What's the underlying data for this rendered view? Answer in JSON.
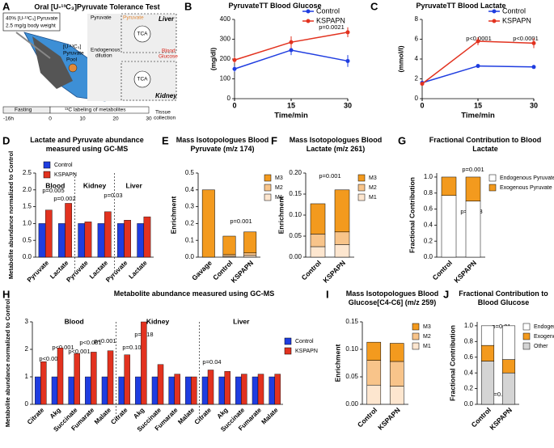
{
  "diagram": {
    "label": "A",
    "title": "Oral [U-¹³C₃]Pyruvate Tolerance Test",
    "dose_1": "40% [U-¹³C₃] Pyruvate",
    "dose_2": "2.5 mg/g body weight",
    "pool_1": "[U-¹³C₃]",
    "pool_2": "Pyruvate",
    "pool_3": "Pool",
    "liver_pyruvate_1": "Pyruvate",
    "liver_pyruvate_2": "Pyruvate",
    "liver": "Liver",
    "tca_1": "TCA",
    "dilution_1": "Endogenous",
    "dilution_2": "dilution",
    "glucose_1": "Blood",
    "glucose_2": "Glucose",
    "tca_2": "TCA",
    "kidney": "Kidney",
    "fasting": "Fasting",
    "labeling": "¹³C labeling of metabolites",
    "timeline": [
      "-16h",
      "0",
      "10",
      "20",
      "30"
    ],
    "collection_1": "Tissue",
    "collection_2": "collection"
  },
  "chart_data": [
    {
      "label": "B",
      "type": "line",
      "title": "PyruvateTT Blood Glucose",
      "x": [
        0,
        15,
        30
      ],
      "xlim": [
        0,
        30
      ],
      "xticks": [
        0,
        15,
        30
      ],
      "ylim": [
        0,
        400
      ],
      "yticks": [
        0,
        100,
        200,
        300,
        400
      ],
      "xlabel": "Time/min",
      "ylabel": "(mg/dl)",
      "legend": "upper right",
      "series": [
        {
          "name": "Control",
          "color": "#1f3de0",
          "values": [
            150,
            245,
            190
          ],
          "errors": [
            15,
            25,
            30
          ]
        },
        {
          "name": "KSPAPN",
          "color": "#e2321f",
          "values": [
            195,
            285,
            335
          ],
          "errors": [
            15,
            30,
            25
          ]
        }
      ],
      "annotations": [
        "p=0.0021"
      ]
    },
    {
      "label": "C",
      "type": "line",
      "title": "PyruvateTT Blood Lactate",
      "x": [
        0,
        15,
        30
      ],
      "xlim": [
        0,
        30
      ],
      "xticks": [
        0,
        15,
        30
      ],
      "ylim": [
        0,
        8
      ],
      "yticks": [
        0,
        2,
        4,
        6,
        8
      ],
      "xlabel": "Time/min",
      "ylabel": "(mmol/l)",
      "legend": "upper right",
      "series": [
        {
          "name": "Control",
          "color": "#1f3de0",
          "values": [
            1.6,
            3.3,
            3.2
          ],
          "errors": [
            0.1,
            0.2,
            0.15
          ]
        },
        {
          "name": "KSPAPN",
          "color": "#e2321f",
          "values": [
            1.5,
            5.8,
            5.6
          ],
          "errors": [
            0.1,
            0.4,
            0.5
          ]
        }
      ],
      "annotations": [
        "p<0.0001",
        "p<0.0001"
      ]
    },
    {
      "label": "D",
      "type": "grouped_bar",
      "title": "Lactate and Pyruvate abundance measured using GC-MS",
      "categories": [
        "Pyruvate",
        "Lactate",
        "Pyruvate",
        "Lactate",
        "Pyruvate",
        "Lactate"
      ],
      "groups": [
        "Blood",
        "Kidney",
        "Liver"
      ],
      "ylim": [
        0,
        2.5
      ],
      "yticks": [
        {
          "value": 0,
          "label": "0.0"
        },
        {
          "value": 0.5,
          "label": "0.5"
        },
        {
          "value": 1,
          "label": "1.0"
        },
        {
          "value": 1.5,
          "label": "1.5"
        },
        {
          "value": 2,
          "label": "2.0"
        },
        {
          "value": 2.5,
          "label": "2.5"
        }
      ],
      "ylabel": "Metabolite abundance normalized to Control",
      "legend": "top",
      "series": [
        {
          "name": "Control",
          "color": "#1f3de0",
          "values": [
            1.0,
            1.0,
            1.0,
            1.0,
            1.0,
            1.0
          ]
        },
        {
          "name": "KSPAPN",
          "color": "#e2321f",
          "values": [
            1.4,
            1.6,
            1.05,
            1.35,
            1.1,
            1.2
          ]
        }
      ],
      "annotations": [
        "p=0.005",
        "p=0.002",
        "p=0.03"
      ]
    },
    {
      "label": "E",
      "type": "stacked_bar",
      "title": "Mass Isotopologues Blood Pyruvate (m/z 174)",
      "categories": [
        "Gavage",
        "Control",
        "KSPAPN"
      ],
      "ylim": [
        0,
        0.5
      ],
      "yticks": [
        {
          "value": 0,
          "label": "0.0"
        },
        0.1,
        0.2,
        0.3,
        0.4,
        0.5
      ],
      "ylabel": "Enrichment",
      "legend": "right",
      "legend_reversed": true,
      "series": [
        {
          "name": "M1",
          "color": "#fde6cf",
          "values": [
            0,
            0.005,
            0.01
          ]
        },
        {
          "name": "M2",
          "color": "#f8c48a",
          "values": [
            0,
            0.01,
            0.015
          ]
        },
        {
          "name": "M3",
          "color": "#f39a1e",
          "values": [
            0.4,
            0.11,
            0.125
          ]
        }
      ],
      "annotations": [
        "p=0.001"
      ]
    },
    {
      "label": "F",
      "type": "stacked_bar",
      "title": "Mass Isotopologues Blood Lactate (m/z 261)",
      "categories": [
        "Control",
        "KSPAPN"
      ],
      "ylim": [
        0,
        0.2
      ],
      "yticks": [
        {
          "value": 0,
          "label": "0.00"
        },
        0.05,
        {
          "value": 0.1,
          "label": "0.10"
        },
        0.15,
        {
          "value": 0.2,
          "label": "0.20"
        }
      ],
      "ylabel": "Enrichment",
      "legend": "right",
      "legend_reversed": true,
      "series": [
        {
          "name": "M1",
          "color": "#fde6cf",
          "values": [
            0.025,
            0.03
          ]
        },
        {
          "name": "M2",
          "color": "#f8c48a",
          "values": [
            0.03,
            0.03
          ]
        },
        {
          "name": "M3",
          "color": "#f39a1e",
          "values": [
            0.072,
            0.1
          ]
        }
      ],
      "annotations": [
        "p=0.001"
      ]
    },
    {
      "label": "G",
      "type": "stacked_bar",
      "title": "Fractional Contribution to Blood Lactate",
      "categories": [
        "Control",
        "KSPAPN"
      ],
      "ylim": [
        0,
        1.05
      ],
      "yticks": [
        {
          "value": 0,
          "label": "0.0"
        },
        0.2,
        0.4,
        0.6,
        0.8,
        {
          "value": 1,
          "label": "1.0"
        }
      ],
      "ylabel": "Fractional Contribution",
      "legend": "right",
      "legend_reversed": false,
      "series": [
        {
          "name": "Endogenous Pyruvate",
          "color": "#ffffff",
          "values": [
            0.77,
            0.7
          ]
        },
        {
          "name": "Exogenous Pyruvate",
          "color": "#f39a1e",
          "values": [
            0.23,
            0.3
          ]
        }
      ],
      "annotations": [
        "p=0.001",
        "p=0.003"
      ]
    },
    {
      "label": "H",
      "type": "grouped_bar",
      "title": "Metabolite abundance measured using GC-MS",
      "categories": [
        "Citrate",
        "Akg",
        "Succinate",
        "Fumarate",
        "Malate",
        "Citrate",
        "Akg",
        "Succinate",
        "Fumarate",
        "Malate",
        "Citrate",
        "Akg",
        "Succinate",
        "Fumarate",
        "Malate"
      ],
      "groups": [
        "Blood",
        "Kidney",
        "Liver"
      ],
      "ylim": [
        0,
        3
      ],
      "yticks": [
        0,
        1,
        2,
        3
      ],
      "ylabel": "Metabolite abundance normalized to Control",
      "legend": "right",
      "series": [
        {
          "name": "Control",
          "color": "#1f3de0",
          "values": [
            1,
            1,
            1,
            1,
            1,
            1,
            1,
            1,
            1,
            1,
            1,
            1,
            1,
            1,
            1
          ]
        },
        {
          "name": "KSPAPN",
          "color": "#e2321f",
          "values": [
            1.55,
            2.05,
            1.85,
            1.9,
            1.95,
            1.8,
            3.0,
            1.45,
            1.1,
            1.0,
            1.25,
            1.2,
            1.1,
            1.1,
            1.1
          ]
        }
      ],
      "annotations": [
        "p<0.001",
        "p<0.001",
        "p<0.001",
        "p<0.001",
        "p<0.001",
        "p=0.10",
        "p=0.18",
        "p=0.04"
      ]
    },
    {
      "label": "I",
      "type": "stacked_bar",
      "title": "Mass Isotopologues Blood Glucose[C4-C6] (m/z 259)",
      "categories": [
        "Control",
        "KSPAPN"
      ],
      "ylim": [
        0,
        0.15
      ],
      "yticks": [
        {
          "value": 0,
          "label": "0.00"
        },
        0.05,
        {
          "value": 0.1,
          "label": "0.10"
        },
        0.15
      ],
      "ylabel": "Enrichment",
      "legend": "right",
      "legend_reversed": true,
      "series": [
        {
          "name": "M1",
          "color": "#fde6cf",
          "values": [
            0.035,
            0.033
          ]
        },
        {
          "name": "M2",
          "color": "#f8c48a",
          "values": [
            0.045,
            0.045
          ]
        },
        {
          "name": "M3",
          "color": "#f39a1e",
          "values": [
            0.033,
            0.033
          ]
        }
      ],
      "annotations": []
    },
    {
      "label": "J",
      "type": "stacked_bar",
      "title": "Fractional Contribution to Blood Glucose",
      "categories": [
        "Control",
        "KSPAPN"
      ],
      "ylim": [
        0,
        1.05
      ],
      "yticks": [
        {
          "value": 0,
          "label": "0.0"
        },
        0.2,
        0.4,
        0.6,
        0.8,
        {
          "value": 1,
          "label": "1.0"
        }
      ],
      "ylabel": "Fractional Contribution",
      "legend": "right",
      "legend_reversed": true,
      "series": [
        {
          "name": "Other",
          "color": "#d4d4d4",
          "values": [
            0.55,
            0.4
          ]
        },
        {
          "name": "Exogenous Pyruvate",
          "color": "#f39a1e",
          "values": [
            0.2,
            0.17
          ]
        },
        {
          "name": "Endogenous Pyruvate",
          "color": "#ffffff",
          "values": [
            0.25,
            0.43
          ]
        }
      ],
      "annotations": [
        "p=0.01",
        "p=0.005"
      ]
    }
  ]
}
